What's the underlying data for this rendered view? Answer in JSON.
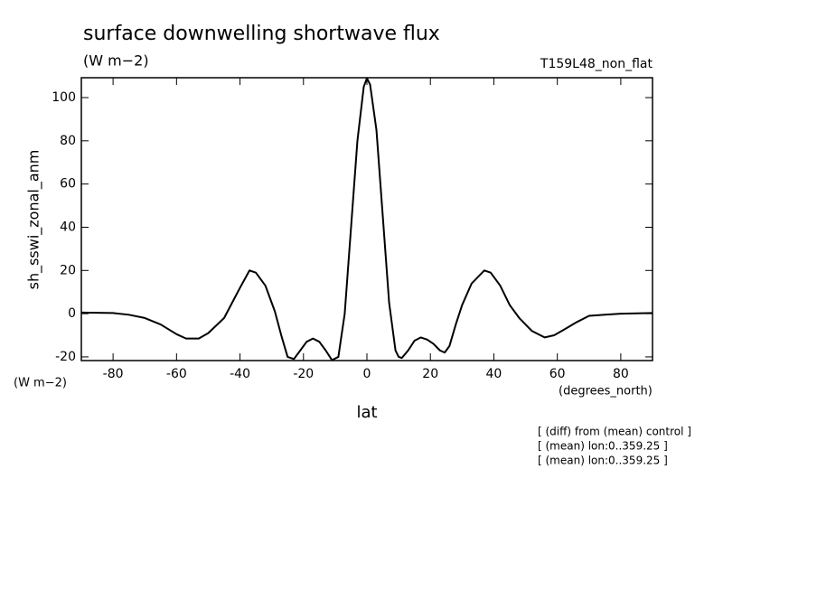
{
  "chart_data": {
    "type": "line",
    "title": "surface downwelling shortwave flux",
    "subtitle": "(W m−2)",
    "annotation": "T159L48_non_flat",
    "y_label": "sh_sswi_zonal_anm",
    "y_unit": "(W m−2)",
    "x_label": "lat",
    "x_unit": "(degrees_north)",
    "notes": [
      "[ (diff) from (mean) control ]",
      "[ (mean) lon:0..359.25 ]",
      "[ (mean) lon:0..359.25 ]"
    ],
    "color": "#000000",
    "x": [
      -90,
      -80,
      -75,
      -70,
      -65,
      -60,
      -57,
      -53,
      -50,
      -45,
      -40,
      -37,
      -35,
      -32,
      -29,
      -27,
      -25,
      -23,
      -21,
      -19,
      -17,
      -15,
      -13,
      -11,
      -9,
      -7,
      -5,
      -3,
      -1,
      0,
      1,
      3,
      5,
      7,
      9,
      10,
      11,
      13,
      15,
      17,
      19,
      21,
      23,
      24.5,
      26,
      28,
      30,
      33,
      37,
      39,
      42,
      45,
      48,
      52,
      56,
      59,
      62,
      66,
      70,
      75,
      80,
      90
    ],
    "values": [
      0.5,
      0.3,
      -0.5,
      -2,
      -5,
      -9.5,
      -11.5,
      -11.5,
      -9,
      -2,
      12,
      20,
      19,
      13,
      1,
      -10,
      -20,
      -21,
      -17,
      -13,
      -11.5,
      -13,
      -17,
      -21.5,
      -20,
      0,
      40,
      80,
      105,
      109,
      106,
      85,
      45,
      5,
      -17,
      -20,
      -20.5,
      -17,
      -12.5,
      -11,
      -12,
      -14,
      -17,
      -18,
      -15,
      -5,
      4,
      14,
      20,
      19,
      13,
      4,
      -2,
      -8,
      -11,
      -10,
      -7.5,
      -4,
      -1,
      -0.5,
      0,
      0.3
    ],
    "xlim": [
      -90,
      90
    ],
    "ylim": [
      -21.7,
      109.2
    ],
    "xticks": [
      -80,
      -60,
      -40,
      -20,
      0,
      20,
      40,
      60,
      80
    ],
    "yticks": [
      -20,
      0,
      20,
      40,
      60,
      80,
      100
    ]
  }
}
